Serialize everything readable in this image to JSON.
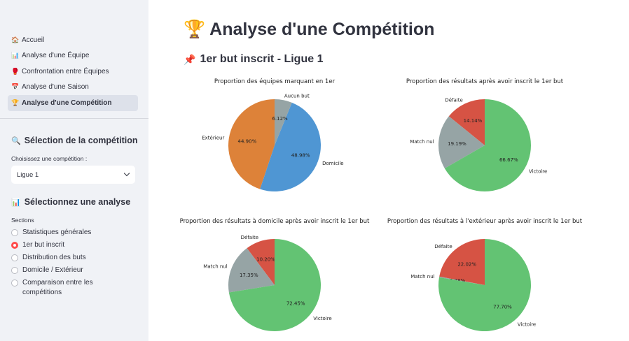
{
  "sidebar": {
    "nav": [
      {
        "icon": "🏠",
        "icon_name": "house-icon",
        "label": "Accueil",
        "active": false
      },
      {
        "icon": "📊",
        "icon_name": "bar-chart-icon",
        "label": "Analyse d'une Équipe",
        "active": false
      },
      {
        "icon": "🥊",
        "icon_name": "boxing-glove-icon",
        "label": "Confrontation entre Équipes",
        "active": false
      },
      {
        "icon": "📅",
        "icon_name": "calendar-icon",
        "label": "Analyse d'une Saison",
        "active": false
      },
      {
        "icon": "🏆",
        "icon_name": "trophy-icon",
        "label": "Analyse d'une Compétition",
        "active": true
      }
    ],
    "competition_heading": "Sélection de la compétition",
    "competition_heading_icon": "🔍",
    "competition_label": "Choisissez une compétition :",
    "competition_value": "Ligue 1",
    "analysis_heading": "Sélectionnez une analyse",
    "analysis_heading_icon": "📊",
    "sections_label": "Sections",
    "options": [
      {
        "label": "Statistiques générales",
        "selected": false
      },
      {
        "label": "1er but inscrit",
        "selected": true
      },
      {
        "label": "Distribution des buts",
        "selected": false
      },
      {
        "label": "Domicile / Extérieur",
        "selected": false
      },
      {
        "label": "Comparaison entre les compétitions",
        "selected": false
      }
    ]
  },
  "main": {
    "title": "Analyse d'une Compétition",
    "title_icon": "🏆",
    "subtitle": "1er but inscrit - Ligue 1",
    "subtitle_icon": "📌"
  },
  "colors": {
    "orange": "#dd8239",
    "blue": "#4f96d3",
    "grey": "#96a4a5",
    "red": "#d65344",
    "green": "#63c373",
    "accent": "#ff4b4b"
  },
  "chart_data": [
    {
      "type": "pie",
      "title": "Proportion des équipes marquant en 1er",
      "slices": [
        {
          "label": "Extérieur",
          "value": 44.9,
          "pct": "44.90%",
          "color": "#dd8239"
        },
        {
          "label": "Domicile",
          "value": 48.98,
          "pct": "48.98%",
          "color": "#4f96d3"
        },
        {
          "label": "Aucun but",
          "value": 6.12,
          "pct": "6.12%",
          "color": "#96a4a5"
        }
      ]
    },
    {
      "type": "pie",
      "title": "Proportion des résultats après avoir inscrit le 1er but",
      "slices": [
        {
          "label": "Défaite",
          "value": 14.14,
          "pct": "14.14%",
          "color": "#d65344"
        },
        {
          "label": "Match nul",
          "value": 19.19,
          "pct": "19.19%",
          "color": "#96a4a5"
        },
        {
          "label": "Victoire",
          "value": 66.67,
          "pct": "66.67%",
          "color": "#63c373"
        }
      ]
    },
    {
      "type": "pie",
      "title": "Proportion des résultats à domicile après avoir inscrit le 1er but",
      "slices": [
        {
          "label": "Défaite",
          "value": 10.2,
          "pct": "10.20%",
          "color": "#d65344"
        },
        {
          "label": "Match nul",
          "value": 17.35,
          "pct": "17.35%",
          "color": "#96a4a5"
        },
        {
          "label": "Victoire",
          "value": 72.45,
          "pct": "72.45%",
          "color": "#63c373"
        }
      ]
    },
    {
      "type": "pie",
      "title": "Proportion des résultats à l'extérieur après avoir inscrit le 1er but",
      "slices": [
        {
          "label": "Défaite",
          "value": 22.02,
          "pct": "22.02%",
          "color": "#d65344"
        },
        {
          "label": "Match nul",
          "value": 0.28,
          "pct": "0.28%",
          "color": "#96a4a5"
        },
        {
          "label": "Victoire",
          "value": 77.7,
          "pct": "77.70%",
          "color": "#63c373"
        }
      ]
    }
  ]
}
